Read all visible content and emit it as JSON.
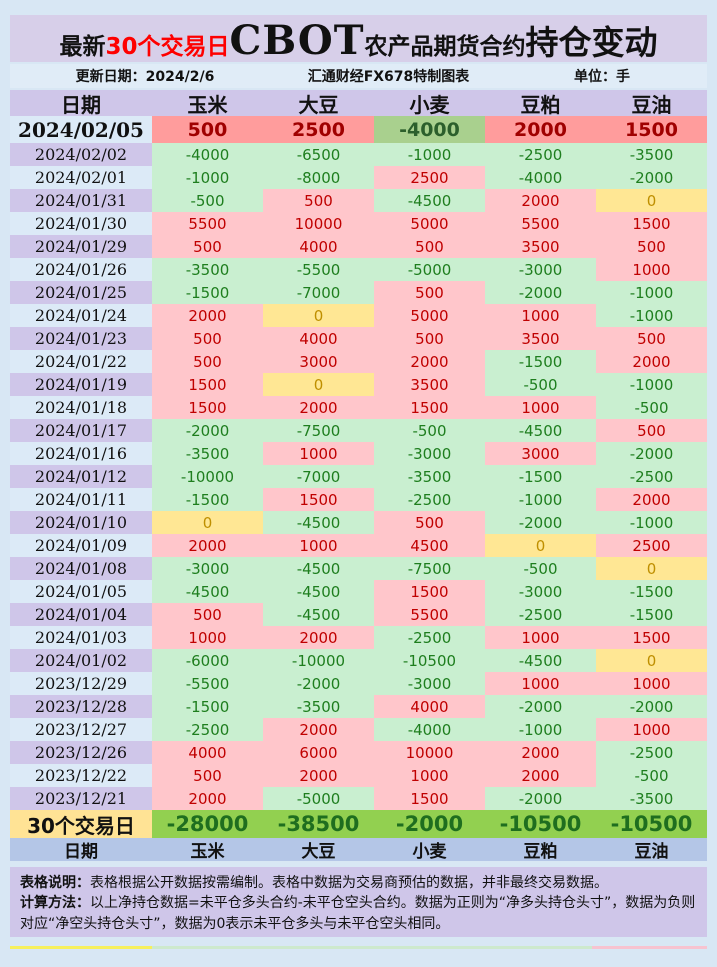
{
  "title": {
    "prefix": "最新",
    "highlight": "30个交易日",
    "cbot": "CBOT",
    "middle": "农产品期货合约",
    "suffix": "持仓变动"
  },
  "meta": {
    "update_label": "更新日期：2024/2/6",
    "source": "汇通财经FX678特制图表",
    "unit": "单位：手"
  },
  "table": {
    "columns": [
      "日期",
      "玉米",
      "大豆",
      "小麦",
      "豆粕",
      "豆油"
    ],
    "summary_label": "30个交易日"
  },
  "chart_data": {
    "type": "table",
    "title": "最新30个交易日CBOT农产品期货合约持仓变动",
    "unit": "手",
    "categories": [
      "2024/02/05",
      "2024/02/02",
      "2024/02/01",
      "2024/01/31",
      "2024/01/30",
      "2024/01/29",
      "2024/01/26",
      "2024/01/25",
      "2024/01/24",
      "2024/01/23",
      "2024/01/22",
      "2024/01/19",
      "2024/01/18",
      "2024/01/17",
      "2024/01/16",
      "2024/01/12",
      "2024/01/11",
      "2024/01/10",
      "2024/01/09",
      "2024/01/08",
      "2024/01/05",
      "2024/01/04",
      "2024/01/03",
      "2024/01/02",
      "2023/12/29",
      "2023/12/28",
      "2023/12/27",
      "2023/12/26",
      "2023/12/22",
      "2023/12/21"
    ],
    "series": [
      {
        "name": "玉米",
        "values": [
          500,
          -4000,
          -1000,
          -500,
          5500,
          500,
          -3500,
          -1500,
          2000,
          500,
          500,
          1500,
          1500,
          -2000,
          -3500,
          -10000,
          -1500,
          0,
          2000,
          -3000,
          -4500,
          500,
          1000,
          -6000,
          -5500,
          -1500,
          -2500,
          4000,
          500,
          2000
        ]
      },
      {
        "name": "大豆",
        "values": [
          2500,
          -6500,
          -8000,
          500,
          10000,
          4000,
          -5500,
          -7000,
          0,
          4000,
          3000,
          0,
          2000,
          -7500,
          1000,
          -7000,
          1500,
          -4500,
          1000,
          -4500,
          -4500,
          -4500,
          2000,
          -10000,
          -2000,
          -3500,
          2000,
          6000,
          2000,
          -5000
        ]
      },
      {
        "name": "小麦",
        "values": [
          -4000,
          -1000,
          2500,
          -4500,
          5000,
          500,
          -5000,
          500,
          5000,
          500,
          2000,
          3500,
          1500,
          -500,
          -3000,
          -3500,
          -2500,
          500,
          4500,
          -7500,
          1500,
          5500,
          -2500,
          -10500,
          -3000,
          4000,
          -4000,
          10000,
          1000,
          1500
        ]
      },
      {
        "name": "豆粕",
        "values": [
          2000,
          -2500,
          -4000,
          2000,
          5500,
          3500,
          -3000,
          -2000,
          1000,
          3500,
          -1500,
          -500,
          1000,
          -4500,
          3000,
          -1500,
          -1000,
          -2000,
          0,
          -500,
          -3000,
          -2500,
          1000,
          -4500,
          1000,
          -2000,
          -1000,
          2000,
          2000,
          -2000
        ]
      },
      {
        "name": "豆油",
        "values": [
          1500,
          -3500,
          -2000,
          0,
          1500,
          500,
          1000,
          -1000,
          -1000,
          500,
          2000,
          -1000,
          -500,
          500,
          -2000,
          -2500,
          2000,
          -1000,
          2500,
          0,
          -1500,
          -1500,
          1500,
          0,
          1000,
          -2000,
          1000,
          -2500,
          -500,
          -3500
        ]
      }
    ],
    "totals": [
      -28000,
      -38500,
      -2000,
      -10500,
      -10500
    ]
  },
  "notes": [
    {
      "label": "表格说明：",
      "text": "表格根据公开数据按需编制。表格中数据为交易商预估的数据，并非最终交易数据。"
    },
    {
      "label": "计算方法：",
      "text": "以上净持仓数据=未平仓多头合约-未平仓空头合约。数据为正则为“净多头持仓头寸”，数据为负则对应“净空头持仓头寸”，数据为0表示未平仓多头与未平仓空头相同。"
    }
  ],
  "colors": {
    "page_bg": "#d8e7f4",
    "title_band_bg": "#d7cfe9",
    "title_highlight": "#fe0000",
    "header_bg": "#cfc6e9",
    "header2_bg": "#b4c6e7",
    "date_blue": "#dceaf7",
    "date_purple": "#cfc6e9",
    "positive_bg": "#ffc6cb",
    "positive_text": "#c00000",
    "negative_bg": "#c9efd0",
    "negative_text": "#1e7e1e",
    "zero_bg": "#ffe794",
    "zero_text": "#bf8f00",
    "latest_positive_bg": "#ff9c9c",
    "latest_negative_bg": "#a9d08e",
    "summary_label_bg": "#ffe395",
    "summary_value_bg": "#92d050",
    "summary_text": "#1f6e1f",
    "notes_bg": "#cfc6e9"
  }
}
